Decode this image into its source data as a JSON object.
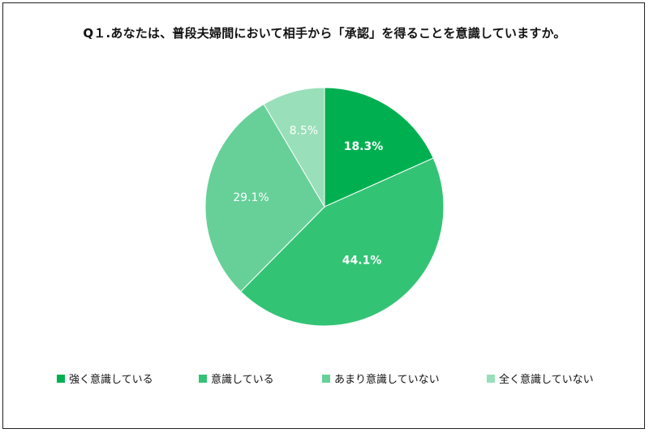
{
  "chart_data": {
    "type": "pie",
    "title": "Q１.あなたは、普段夫婦間において相手から「承認」を得ることを意識していますか。",
    "categories": [
      "強く意識している",
      "意識している",
      "あまり意識していない",
      "全く意識していない"
    ],
    "values": [
      18.3,
      44.1,
      29.1,
      8.5
    ],
    "data_labels": [
      "18.3%",
      "44.1%",
      "29.1%",
      "8.5%"
    ],
    "colors": [
      "#00b050",
      "#33c375",
      "#66d098",
      "#99dfb9"
    ],
    "legend_position": "bottom",
    "start_angle_deg": 0,
    "direction": "clockwise"
  }
}
